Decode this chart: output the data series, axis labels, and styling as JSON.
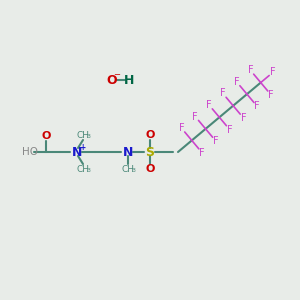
{
  "bg_color": "#e8ece8",
  "bond_color": "#4a8878",
  "bond_lw": 1.5,
  "N_color": "#1a1acc",
  "S_color": "#aaaa00",
  "O_color": "#cc0000",
  "F_color": "#cc44cc",
  "H_color": "#006644",
  "gray_color": "#888888",
  "figsize": [
    3.0,
    3.0
  ],
  "dpi": 100,
  "xlim": [
    0,
    300
  ],
  "ylim": [
    0,
    300
  ]
}
